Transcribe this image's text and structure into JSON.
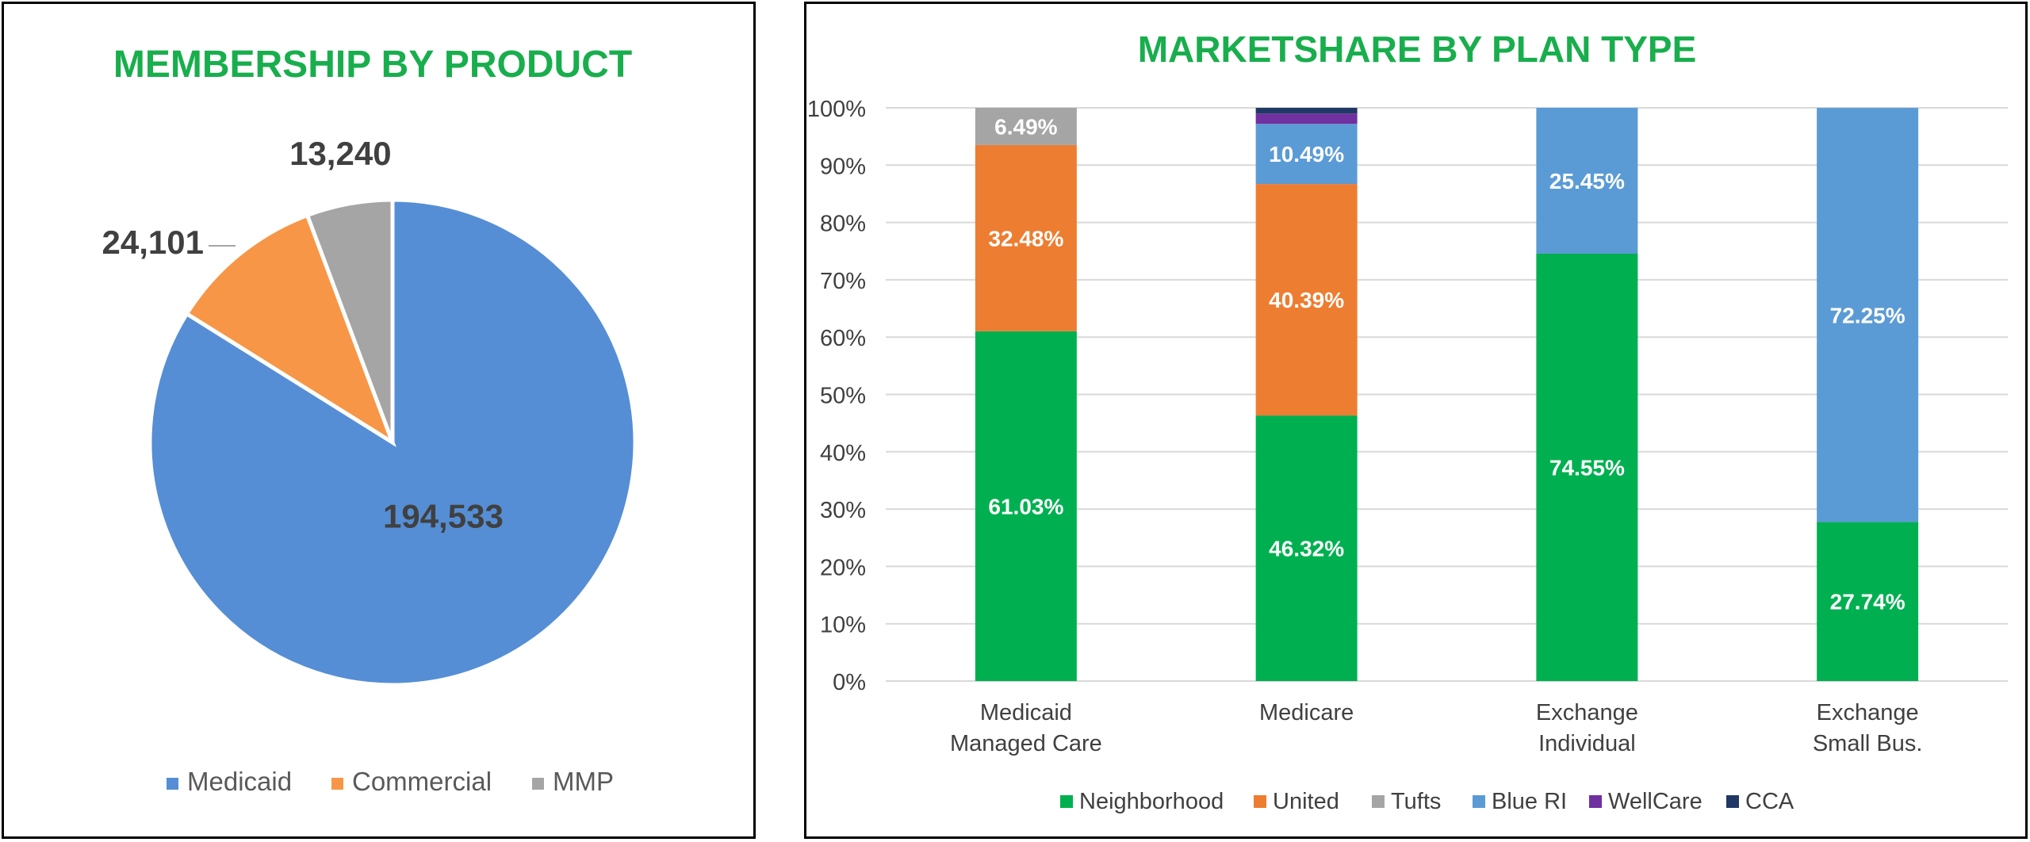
{
  "colors": {
    "title": "#19ae4d",
    "Medicaid": "#558ed5",
    "Commercial": "#f79646",
    "MMP": "#a5a5a5",
    "Neighborhood": "#00b050",
    "United": "#ed7d31",
    "Tufts": "#a5a5a5",
    "Blue RI": "#5b9bd5",
    "WellCare": "#7030a0",
    "CCA": "#203864",
    "label_dark": "#404040",
    "axis_text": "#404040",
    "grid": "#d9d9d9"
  },
  "chart_data": [
    {
      "type": "pie",
      "title": "MEMBERSHIP BY PRODUCT",
      "slices": [
        {
          "name": "Medicaid",
          "value": 194533,
          "label": "194,533"
        },
        {
          "name": "Commercial",
          "value": 24101,
          "label": "24,101"
        },
        {
          "name": "MMP",
          "value": 13240,
          "label": "13,240"
        }
      ],
      "legend": [
        "Medicaid",
        "Commercial",
        "MMP"
      ],
      "legend_position": "bottom"
    },
    {
      "type": "bar",
      "stacked": true,
      "title": "MARKETSHARE BY PLAN TYPE",
      "categories": [
        [
          "Medicaid",
          "Managed Care"
        ],
        [
          "Medicare"
        ],
        [
          "Exchange",
          "Individual"
        ],
        [
          "Exchange",
          "Small Bus."
        ]
      ],
      "y_ticks": [
        "0%",
        "10%",
        "20%",
        "30%",
        "40%",
        "50%",
        "60%",
        "70%",
        "80%",
        "90%",
        "100%"
      ],
      "ylim": [
        0,
        100
      ],
      "grid": true,
      "legend_position": "bottom",
      "series": [
        {
          "name": "Neighborhood",
          "values": [
            61.03,
            46.32,
            74.55,
            27.74
          ],
          "labels": [
            "61.03%",
            "46.32%",
            "74.55%",
            "27.74%"
          ]
        },
        {
          "name": "United",
          "values": [
            32.48,
            40.39,
            0,
            0
          ],
          "labels": [
            "32.48%",
            "40.39%",
            "",
            ""
          ]
        },
        {
          "name": "Tufts",
          "values": [
            6.49,
            0,
            0,
            0
          ],
          "labels": [
            "6.49%",
            "",
            "",
            ""
          ]
        },
        {
          "name": "Blue RI",
          "values": [
            0,
            10.49,
            25.45,
            72.25
          ],
          "labels": [
            "",
            "10.49%",
            "25.45%",
            "72.25%"
          ]
        },
        {
          "name": "WellCare",
          "values": [
            0,
            1.8,
            0,
            0
          ],
          "labels": [
            "",
            "",
            "",
            ""
          ]
        },
        {
          "name": "CCA",
          "values": [
            0,
            1.0,
            0,
            0
          ],
          "labels": [
            "",
            "",
            "",
            ""
          ]
        }
      ]
    }
  ]
}
